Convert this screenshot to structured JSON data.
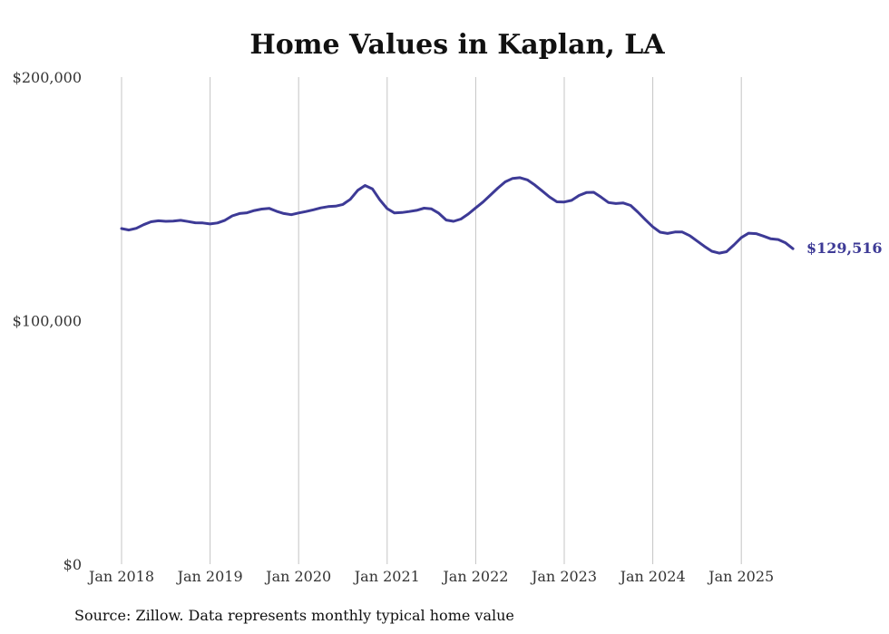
{
  "chart_data": {
    "type": "line",
    "title": "Home Values in Kaplan, LA",
    "xlabel": "",
    "ylabel": "",
    "ylim": [
      0,
      200000
    ],
    "y_ticks": [
      {
        "value": 0,
        "label": "$0"
      },
      {
        "value": 100000,
        "label": "$100,000"
      },
      {
        "value": 200000,
        "label": "$200,000"
      }
    ],
    "x_ticks": [
      "Jan 2018",
      "Jan 2019",
      "Jan 2020",
      "Jan 2021",
      "Jan 2022",
      "Jan 2023",
      "Jan 2024",
      "Jan 2025"
    ],
    "x_start": "2018-01",
    "x_end": "2025-08",
    "grid": "vertical",
    "line_color": "#3d3a96",
    "end_label": "$129,516",
    "series": [
      {
        "values": [
          137800,
          137200,
          137900,
          139400,
          140600,
          141000,
          140800,
          140900,
          141200,
          140700,
          140200,
          140100,
          139700,
          140100,
          141200,
          143000,
          144000,
          144300,
          145200,
          145800,
          146100,
          144900,
          144000,
          143500,
          144200,
          144800,
          145500,
          146300,
          146800,
          147000,
          147700,
          149800,
          153500,
          155500,
          154100,
          149600,
          146000,
          144200,
          144400,
          144800,
          145300,
          146200,
          145900,
          144100,
          141300,
          140800,
          141700,
          143800,
          146300,
          148700,
          151600,
          154400,
          157000,
          158400,
          158700,
          157800,
          155700,
          153300,
          150800,
          148800,
          148700,
          149400,
          151400,
          152600,
          152700,
          150700,
          148500,
          148100,
          148300,
          147300,
          144500,
          141400,
          138500,
          136300,
          135800,
          136400,
          136400,
          134900,
          132700,
          130500,
          128500,
          127700,
          128300,
          131100,
          134100,
          135900,
          135700,
          134700,
          133600,
          133300,
          131900,
          129516
        ]
      }
    ]
  },
  "footer": {
    "source": "Source: Zillow. Data represents monthly typical home value"
  }
}
